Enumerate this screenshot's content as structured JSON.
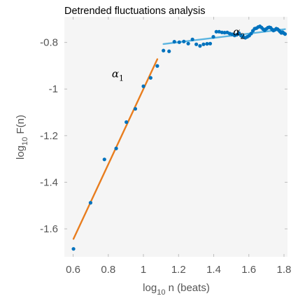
{
  "chart_data": {
    "type": "scatter",
    "title": "Detrended fluctuations analysis",
    "xlabel_prefix": "log",
    "xlabel_sub": "10",
    "xlabel_suffix": " n (beats)",
    "ylabel_prefix": "log",
    "ylabel_sub": "10",
    "ylabel_suffix": " F(n)",
    "xlim": [
      0.55,
      1.82
    ],
    "ylim": [
      -1.72,
      -0.69
    ],
    "xticks": [
      0.6,
      0.8,
      1,
      1.2,
      1.4,
      1.6,
      1.8
    ],
    "xtick_labels": [
      "0.6",
      "0.8",
      "1",
      "1.2",
      "1.4",
      "1.6",
      "1.8"
    ],
    "yticks": [
      -0.8,
      -1,
      -1.2,
      -1.4,
      -1.6
    ],
    "ytick_labels": [
      "-0.8",
      "-1",
      "-1.2",
      "-1.4",
      "-1.6"
    ],
    "grid": false,
    "background_color": "#f5f5f5",
    "points_color": "#0072bd",
    "series": [
      {
        "values": [
          [
            0.602,
            -1.686
          ],
          [
            0.699,
            -1.488
          ],
          [
            0.778,
            -1.302
          ],
          [
            0.845,
            -1.255
          ],
          [
            0.903,
            -1.142
          ],
          [
            0.954,
            -1.085
          ],
          [
            1.0,
            -0.988
          ],
          [
            1.041,
            -0.952
          ],
          [
            1.079,
            -0.901
          ],
          [
            1.114,
            -0.835
          ],
          [
            1.146,
            -0.838
          ],
          [
            1.176,
            -0.797
          ],
          [
            1.204,
            -0.799
          ],
          [
            1.23,
            -0.796
          ],
          [
            1.255,
            -0.805
          ],
          [
            1.279,
            -0.787
          ],
          [
            1.301,
            -0.808
          ],
          [
            1.322,
            -0.815
          ],
          [
            1.342,
            -0.808
          ],
          [
            1.362,
            -0.806
          ],
          [
            1.38,
            -0.805
          ],
          [
            1.398,
            -0.776
          ],
          [
            1.415,
            -0.754
          ],
          [
            1.431,
            -0.754
          ],
          [
            1.447,
            -0.757
          ],
          [
            1.462,
            -0.758
          ],
          [
            1.477,
            -0.757
          ],
          [
            1.491,
            -0.762
          ],
          [
            1.505,
            -0.765
          ],
          [
            1.519,
            -0.77
          ],
          [
            1.531,
            -0.767
          ],
          [
            1.544,
            -0.76
          ],
          [
            1.556,
            -0.771
          ],
          [
            1.568,
            -0.776
          ],
          [
            1.58,
            -0.78
          ],
          [
            1.591,
            -0.776
          ],
          [
            1.602,
            -0.771
          ],
          [
            1.613,
            -0.762
          ],
          [
            1.623,
            -0.75
          ],
          [
            1.633,
            -0.741
          ],
          [
            1.643,
            -0.739
          ],
          [
            1.653,
            -0.734
          ],
          [
            1.663,
            -0.731
          ],
          [
            1.672,
            -0.736
          ],
          [
            1.681,
            -0.743
          ],
          [
            1.69,
            -0.748
          ],
          [
            1.699,
            -0.742
          ],
          [
            1.708,
            -0.737
          ],
          [
            1.716,
            -0.735
          ],
          [
            1.724,
            -0.737
          ],
          [
            1.732,
            -0.744
          ],
          [
            1.74,
            -0.749
          ],
          [
            1.748,
            -0.746
          ],
          [
            1.756,
            -0.741
          ],
          [
            1.763,
            -0.743
          ],
          [
            1.771,
            -0.748
          ],
          [
            1.778,
            -0.754
          ],
          [
            1.785,
            -0.759
          ],
          [
            1.792,
            -0.756
          ],
          [
            1.799,
            -0.76
          ],
          [
            1.806,
            -0.764
          ]
        ]
      }
    ],
    "fit_lines": [
      {
        "name": "alpha1",
        "color": "#e87d1e",
        "x": [
          0.602,
          1.079
        ],
        "y": [
          -1.643,
          -0.872
        ]
      },
      {
        "name": "alpha2",
        "color": "#5ab4e0",
        "x": [
          1.114,
          1.806
        ],
        "y": [
          -0.807,
          -0.743
        ]
      }
    ],
    "annotations": [
      {
        "symbol": "α",
        "sub": "1",
        "x": 0.82,
        "y": -0.95
      },
      {
        "symbol": "α",
        "sub": "2",
        "x": 1.51,
        "y": -0.77
      }
    ]
  }
}
